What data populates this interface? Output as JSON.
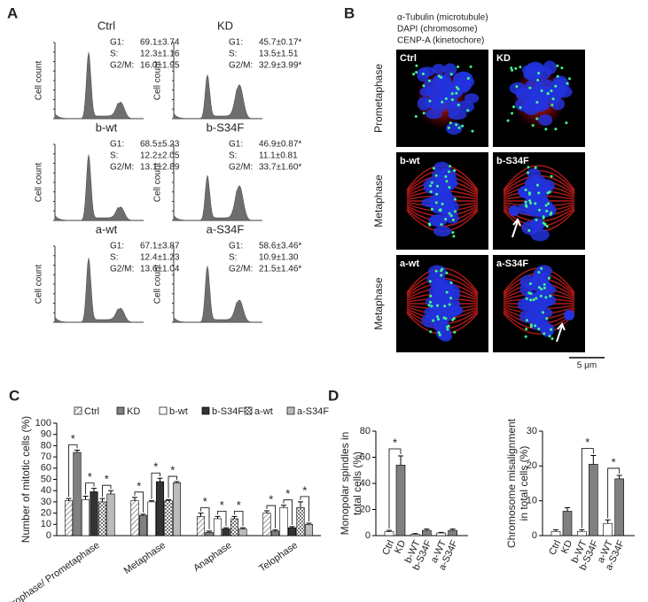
{
  "panel_a": {
    "label": "A",
    "y_label": "Cell count",
    "histograms": [
      {
        "title": "Ctrl",
        "stats": [
          [
            "G1:",
            "69.1±3.74"
          ],
          [
            "S:",
            "12.3±1.16"
          ],
          [
            "G2/M:",
            "16.0±1.95"
          ]
        ]
      },
      {
        "title": "KD",
        "stats": [
          [
            "G1:",
            "45.7±0.17*"
          ],
          [
            "S:",
            "13.5±1.51"
          ],
          [
            "G2/M:",
            "32.9±3.99*"
          ]
        ]
      },
      {
        "title": "b-wt",
        "stats": [
          [
            "G1:",
            "68.5±5.23"
          ],
          [
            "S:",
            "12.2±2.05"
          ],
          [
            "G2/M:",
            "13.1±2.89"
          ]
        ]
      },
      {
        "title": "b-S34F",
        "stats": [
          [
            "G1:",
            "46.9±0.87*"
          ],
          [
            "S:",
            "11.1±0.81"
          ],
          [
            "G2/M:",
            "33.7±1.60*"
          ]
        ]
      },
      {
        "title": "a-wt",
        "stats": [
          [
            "G1:",
            "67.1±3.87"
          ],
          [
            "S:",
            "12.4±1.23"
          ],
          [
            "G2/M:",
            "13.6±1.04"
          ]
        ]
      },
      {
        "title": "a-S34F",
        "stats": [
          [
            "G1:",
            "58.6±3.46*"
          ],
          [
            "S:",
            "10.9±1.30"
          ],
          [
            "G2/M:",
            "21.5±1.46*"
          ]
        ]
      }
    ]
  },
  "panel_b": {
    "label": "B",
    "legend": [
      {
        "text": "α-Tubulin (microtubule)",
        "color": "#e8211c"
      },
      {
        "text": "DAPI (chromosome)",
        "color": "#1f6fc4"
      },
      {
        "text": "CENP-A (kinetochore)",
        "color": "#22a845"
      }
    ],
    "rows": [
      "Prometaphase",
      "Metaphase",
      "Metaphase"
    ],
    "images": [
      "Ctrl",
      "KD",
      "b-wt",
      "b-S34F",
      "a-wt",
      "a-S34F"
    ],
    "scale_bar": "5 μm"
  },
  "chart_data": [
    {
      "type": "grouped-bar",
      "label": "C",
      "y_label": "Number of mitotic cells (%)",
      "categories": [
        "Prophase/ Prometaphase",
        "Metaphase",
        "Anaphase",
        "Telophase"
      ],
      "series": [
        {
          "name": "Ctrl",
          "pattern": "hatch",
          "color": "#ffffff",
          "values": [
            31,
            31,
            17,
            20
          ],
          "errors": [
            2,
            3,
            3,
            2
          ]
        },
        {
          "name": "KD",
          "pattern": "solid",
          "color": "#808080",
          "values": [
            74,
            18,
            3,
            4
          ],
          "errors": [
            2,
            1,
            1,
            1
          ]
        },
        {
          "name": "b-wt",
          "pattern": "solid",
          "color": "#ffffff",
          "values": [
            32,
            30,
            15,
            25
          ],
          "errors": [
            3,
            1,
            2,
            2
          ]
        },
        {
          "name": "b-S34F",
          "pattern": "solid",
          "color": "#333333",
          "values": [
            39,
            48,
            6,
            7
          ],
          "errors": [
            3,
            3,
            1,
            1
          ]
        },
        {
          "name": "a-wt",
          "pattern": "check",
          "color": "#ffffff",
          "values": [
            30,
            31,
            15,
            25
          ],
          "errors": [
            3,
            1,
            2,
            5
          ]
        },
        {
          "name": "a-S34F",
          "pattern": "solid",
          "color": "#bbbbbb",
          "values": [
            37,
            47,
            6,
            10
          ],
          "errors": [
            3,
            1,
            1,
            1
          ]
        }
      ],
      "ylim": [
        0,
        100
      ],
      "yticks": [
        0,
        10,
        20,
        30,
        40,
        50,
        60,
        70,
        80,
        90,
        100
      ],
      "significance": [
        {
          "label": "*",
          "category": 0,
          "series": [
            0,
            1
          ]
        },
        {
          "label": "*",
          "category": 0,
          "series": [
            2,
            3
          ]
        },
        {
          "label": "*",
          "category": 0,
          "series": [
            4,
            5
          ]
        },
        {
          "label": "*",
          "category": 1,
          "series": [
            0,
            1
          ]
        },
        {
          "label": "*",
          "category": 1,
          "series": [
            2,
            3
          ]
        },
        {
          "label": "*",
          "category": 1,
          "series": [
            4,
            5
          ]
        },
        {
          "label": "*",
          "category": 2,
          "series": [
            0,
            1
          ]
        },
        {
          "label": "*",
          "category": 2,
          "series": [
            2,
            3
          ]
        },
        {
          "label": "*",
          "category": 2,
          "series": [
            4,
            5
          ]
        },
        {
          "label": "*",
          "category": 3,
          "series": [
            0,
            1
          ]
        },
        {
          "label": "*",
          "category": 3,
          "series": [
            2,
            3
          ]
        },
        {
          "label": "*",
          "category": 3,
          "series": [
            4,
            5
          ]
        }
      ]
    },
    {
      "type": "bar",
      "label": "D",
      "y_label": [
        "Monopolar spindles in",
        "total cells (%)"
      ],
      "categories": [
        "Ctrl",
        "KD",
        "b-WT",
        "b-S34F",
        "a-WT",
        "a-S34F"
      ],
      "values": [
        3,
        54,
        1,
        4,
        2,
        4
      ],
      "errors": [
        1,
        7,
        0.5,
        1,
        0.5,
        1
      ],
      "colors": [
        "#ffffff",
        "#808080",
        "#ffffff",
        "#808080",
        "#ffffff",
        "#808080"
      ],
      "ylim": [
        0,
        80
      ],
      "yticks": [
        0,
        20,
        40,
        60,
        80
      ],
      "significance": [
        {
          "label": "*",
          "bars": [
            0,
            1
          ]
        }
      ]
    },
    {
      "type": "bar",
      "y_label": [
        "Chromosome misalignment",
        "in total cells (%)"
      ],
      "categories": [
        "Ctrl",
        "KD",
        "b-WT",
        "b-S34F",
        "a-WT",
        "a-S34F"
      ],
      "values": [
        1.2,
        7,
        1.2,
        20.5,
        3.5,
        16.3
      ],
      "errors": [
        0.5,
        1,
        0.5,
        2.5,
        1,
        1
      ],
      "colors": [
        "#ffffff",
        "#808080",
        "#ffffff",
        "#808080",
        "#ffffff",
        "#808080"
      ],
      "ylim": [
        0,
        30
      ],
      "yticks": [
        0,
        10,
        20,
        30
      ],
      "significance": [
        {
          "label": "*",
          "bars": [
            2,
            3
          ]
        },
        {
          "label": "*",
          "bars": [
            4,
            5
          ]
        }
      ]
    }
  ]
}
